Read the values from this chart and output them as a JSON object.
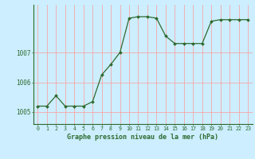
{
  "x": [
    0,
    1,
    2,
    3,
    4,
    5,
    6,
    7,
    8,
    9,
    10,
    11,
    12,
    13,
    14,
    15,
    16,
    17,
    18,
    19,
    20,
    21,
    22,
    23
  ],
  "y": [
    1005.2,
    1005.2,
    1005.55,
    1005.2,
    1005.2,
    1005.2,
    1005.35,
    1006.25,
    1006.6,
    1007.0,
    1008.15,
    1008.2,
    1008.2,
    1008.15,
    1007.55,
    1007.3,
    1007.3,
    1007.3,
    1007.3,
    1008.05,
    1008.1,
    1008.1,
    1008.1,
    1008.1
  ],
  "line_color": "#2d6a2d",
  "marker_color": "#2d6a2d",
  "bg_color": "#cceeff",
  "grid_color": "#ff9999",
  "axis_label_color": "#2d6a2d",
  "title": "Graphe pression niveau de la mer (hPa)",
  "ylabel_ticks": [
    1005,
    1006,
    1007
  ],
  "ylim": [
    1004.6,
    1008.6
  ],
  "xlim": [
    -0.5,
    23.5
  ],
  "xlabel_ticks": [
    0,
    1,
    2,
    3,
    4,
    5,
    6,
    7,
    8,
    9,
    10,
    11,
    12,
    13,
    14,
    15,
    16,
    17,
    18,
    19,
    20,
    21,
    22,
    23
  ]
}
